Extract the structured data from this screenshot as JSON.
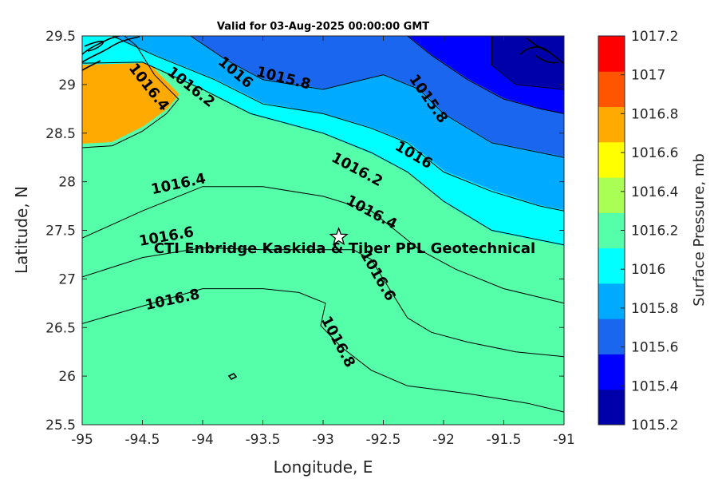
{
  "chart_data": {
    "type": "contour",
    "title": "Valid for 03-Aug-2025 00:00:00 GMT",
    "xlabel": "Longitude, E",
    "ylabel": "Latitude, N",
    "xlim": [
      -95,
      -91
    ],
    "ylim": [
      25.5,
      29.5
    ],
    "xticks": [
      "-95",
      "-94.5",
      "-94",
      "-93.5",
      "-93",
      "-92.5",
      "-92",
      "-91.5",
      "-91"
    ],
    "yticks": [
      "25.5",
      "26",
      "26.5",
      "27",
      "27.5",
      "28",
      "28.5",
      "29",
      "29.5"
    ],
    "colorbar": {
      "label": "Surface Pressure, mb",
      "ticks": [
        "1015.2",
        "1015.4",
        "1015.6",
        "1015.8",
        "1016",
        "1016.2",
        "1016.4",
        "1016.6",
        "1016.8",
        "1017",
        "1017.2"
      ],
      "colors": [
        "#0000aa",
        "#0000ff",
        "#1a66ee",
        "#00aaff",
        "#00ffff",
        "#55ffaa",
        "#aaff55",
        "#ffff00",
        "#ffaa00",
        "#ff5500",
        "#ff0000"
      ]
    },
    "contour_lines": [
      {
        "level": 1016.8,
        "points": [
          [
            -95,
            26.54
          ],
          [
            -94.5,
            26.72
          ],
          [
            -94,
            26.9
          ],
          [
            -93.5,
            26.9
          ],
          [
            -93.2,
            26.86
          ],
          [
            -92.98,
            26.75
          ],
          [
            -93.02,
            26.52
          ],
          [
            -92.85,
            26.3
          ],
          [
            -92.6,
            26.06
          ],
          [
            -92.3,
            25.9
          ],
          [
            -91.8,
            25.82
          ],
          [
            -91.3,
            25.72
          ],
          [
            -91,
            25.63
          ]
        ]
      },
      {
        "level": 1016.6,
        "points": [
          [
            -95,
            27.02
          ],
          [
            -94.5,
            27.22
          ],
          [
            -94,
            27.32
          ],
          [
            -93.5,
            27.3
          ],
          [
            -93,
            27.3
          ],
          [
            -92.75,
            27.3
          ],
          [
            -92.6,
            27.2
          ],
          [
            -92.45,
            26.9
          ],
          [
            -92.3,
            26.6
          ],
          [
            -92.1,
            26.45
          ],
          [
            -91.8,
            26.35
          ],
          [
            -91.4,
            26.25
          ],
          [
            -91,
            26.2
          ]
        ]
      },
      {
        "level": 1016.4,
        "points": [
          [
            -95,
            27.42
          ],
          [
            -94.5,
            27.7
          ],
          [
            -94,
            27.95
          ],
          [
            -93.5,
            27.95
          ],
          [
            -93,
            27.85
          ],
          [
            -92.6,
            27.7
          ],
          [
            -92.4,
            27.5
          ],
          [
            -92.2,
            27.3
          ],
          [
            -91.9,
            27.1
          ],
          [
            -91.5,
            26.9
          ],
          [
            -91,
            26.75
          ]
        ]
      },
      {
        "level": 1016.4,
        "points": [
          [
            -95,
            28.35
          ],
          [
            -94.75,
            28.37
          ],
          [
            -94.5,
            28.52
          ],
          [
            -94.3,
            28.7
          ],
          [
            -94.2,
            28.85
          ],
          [
            -94.4,
            29.1
          ],
          [
            -94.55,
            29.4
          ],
          [
            -94.65,
            29.5
          ]
        ]
      },
      {
        "level": 1016.2,
        "points": [
          [
            -95,
            29.22
          ],
          [
            -94.5,
            29.23
          ],
          [
            -94,
            28.95
          ],
          [
            -93.6,
            28.7
          ],
          [
            -93,
            28.5
          ],
          [
            -92.6,
            28.3
          ],
          [
            -92.3,
            28.1
          ],
          [
            -92,
            27.8
          ],
          [
            -91.6,
            27.5
          ],
          [
            -91.2,
            27.4
          ],
          [
            -91,
            27.35
          ]
        ]
      },
      {
        "level": 1016.0,
        "points": [
          [
            -94.75,
            29.5
          ],
          [
            -94.4,
            29.3
          ],
          [
            -93.9,
            29.05
          ],
          [
            -93.5,
            28.8
          ],
          [
            -93,
            28.7
          ],
          [
            -92.6,
            28.55
          ],
          [
            -92.3,
            28.4
          ],
          [
            -92,
            28.1
          ],
          [
            -91.6,
            27.9
          ],
          [
            -91.2,
            27.75
          ],
          [
            -91,
            27.7
          ]
        ]
      },
      {
        "level": 1015.8,
        "points": [
          [
            -94.1,
            29.5
          ],
          [
            -93.8,
            29.25
          ],
          [
            -93.5,
            29.05
          ],
          [
            -93,
            28.95
          ],
          [
            -92.5,
            29.1
          ],
          [
            -92.2,
            28.95
          ],
          [
            -92,
            28.7
          ],
          [
            -91.6,
            28.4
          ],
          [
            -91.2,
            28.3
          ],
          [
            -91,
            28.25
          ]
        ]
      },
      {
        "level": 1015.6,
        "points": [
          [
            -92.3,
            29.5
          ],
          [
            -92.1,
            29.3
          ],
          [
            -91.8,
            29.05
          ],
          [
            -91.5,
            28.85
          ],
          [
            -91.2,
            28.75
          ],
          [
            -91,
            28.7
          ]
        ]
      },
      {
        "level": 1015.4,
        "points": [
          [
            -91.6,
            29.5
          ],
          [
            -91.6,
            29.2
          ],
          [
            -91.4,
            29
          ],
          [
            -91,
            28.95
          ]
        ]
      }
    ],
    "contour_labels": [
      {
        "text": "1016.4",
        "lon": -94.45,
        "lat": 28.97,
        "angle": 52
      },
      {
        "text": "1016.2",
        "lon": -94.1,
        "lat": 28.97,
        "angle": 38
      },
      {
        "text": "1016",
        "lon": -93.73,
        "lat": 29.12,
        "angle": 40
      },
      {
        "text": "1015.8",
        "lon": -93.33,
        "lat": 29.06,
        "angle": 14
      },
      {
        "text": "1015.8",
        "lon": -92.13,
        "lat": 28.85,
        "angle": 55
      },
      {
        "text": "1016",
        "lon": -92.25,
        "lat": 28.27,
        "angle": 30
      },
      {
        "text": "1016.2",
        "lon": -92.72,
        "lat": 28.12,
        "angle": 28
      },
      {
        "text": "1016.4",
        "lon": -94.2,
        "lat": 27.97,
        "angle": -12
      },
      {
        "text": "1016.4",
        "lon": -92.6,
        "lat": 27.68,
        "angle": 28
      },
      {
        "text": "1016.6",
        "lon": -94.3,
        "lat": 27.43,
        "angle": -10
      },
      {
        "text": "1016.6",
        "lon": -92.55,
        "lat": 27.03,
        "angle": 60
      },
      {
        "text": "1016.8",
        "lon": -94.25,
        "lat": 26.78,
        "angle": -12
      },
      {
        "text": "1016.8",
        "lon": -92.88,
        "lat": 26.35,
        "angle": 62
      }
    ],
    "site": {
      "lon": -92.87,
      "lat": 27.43,
      "label": "CTI Enbridge  Kaskida & Tiber PPL Geotechnical"
    }
  }
}
